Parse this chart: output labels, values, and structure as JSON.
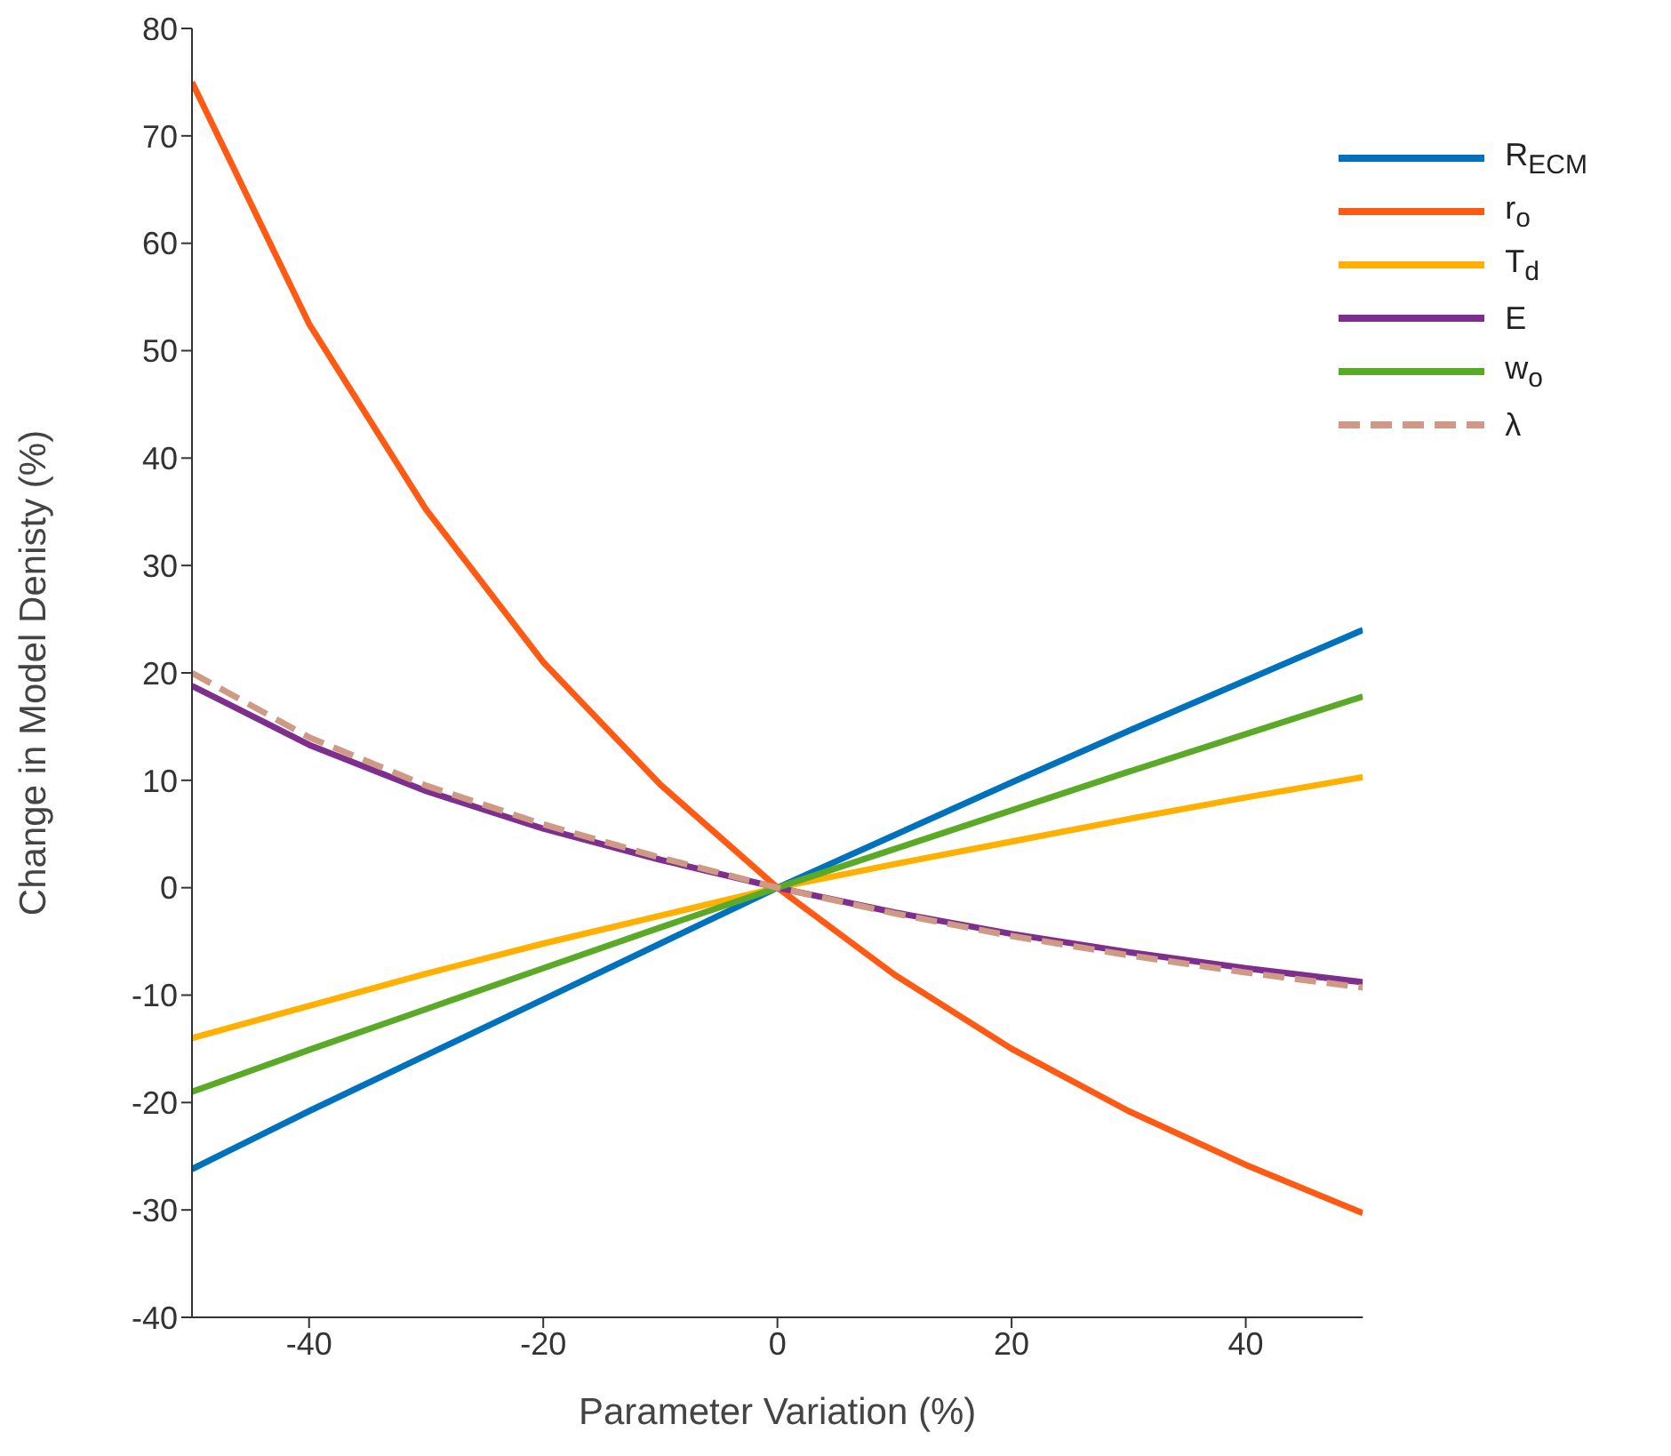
{
  "chart_data": {
    "type": "line",
    "xlabel": "Parameter Variation (%)",
    "ylabel": "Change in Model Denisty (%)",
    "x": [
      -50,
      -40,
      -30,
      -20,
      -10,
      0,
      10,
      20,
      30,
      40,
      50
    ],
    "xlim": [
      -50,
      50
    ],
    "xticks": [
      -40,
      -20,
      0,
      20,
      40
    ],
    "ylim": [
      -40,
      80
    ],
    "yticks": [
      -40,
      -30,
      -20,
      -10,
      0,
      10,
      20,
      30,
      40,
      50,
      60,
      70,
      80
    ],
    "grid": false,
    "legend": "top right",
    "marker": "none",
    "series": [
      {
        "name": "R$_{ECM}$",
        "color": "#0072bd",
        "line_style": "solid",
        "values": [
          -26.2,
          -20.8,
          -15.6,
          -10.4,
          -5.2,
          0,
          4.9,
          9.8,
          14.6,
          19.3,
          24
        ]
      },
      {
        "name": "r$_{o}$",
        "color": "#ff5a14",
        "line_style": "solid",
        "values": [
          75,
          52.5,
          35.2,
          21,
          9.6,
          0,
          -8.1,
          -15,
          -20.8,
          -25.8,
          -30.3
        ]
      },
      {
        "name": "T$_{d}$",
        "color": "#ffb000",
        "line_style": "solid",
        "values": [
          -14,
          -11,
          -8,
          -5.2,
          -2.6,
          0,
          2.2,
          4.3,
          6.4,
          8.4,
          10.3
        ]
      },
      {
        "name": "E",
        "color": "#7e2f8e",
        "line_style": "solid",
        "values": [
          18.8,
          13.3,
          9,
          5.5,
          2.6,
          0,
          -2.3,
          -4.3,
          -6,
          -7.5,
          -8.8
        ]
      },
      {
        "name": "w$_{o}$",
        "color": "#5aaa28",
        "line_style": "solid",
        "values": [
          -19,
          -15.1,
          -11.3,
          -7.5,
          -3.7,
          0,
          3.6,
          7.2,
          10.8,
          14.3,
          17.8
        ]
      },
      {
        "name": "λ",
        "color": "#cf9a85",
        "line_style": "dashed",
        "values": [
          20,
          14,
          9.5,
          5.9,
          2.8,
          0,
          -2.4,
          -4.5,
          -6.3,
          -7.9,
          -9.3
        ]
      }
    ]
  }
}
